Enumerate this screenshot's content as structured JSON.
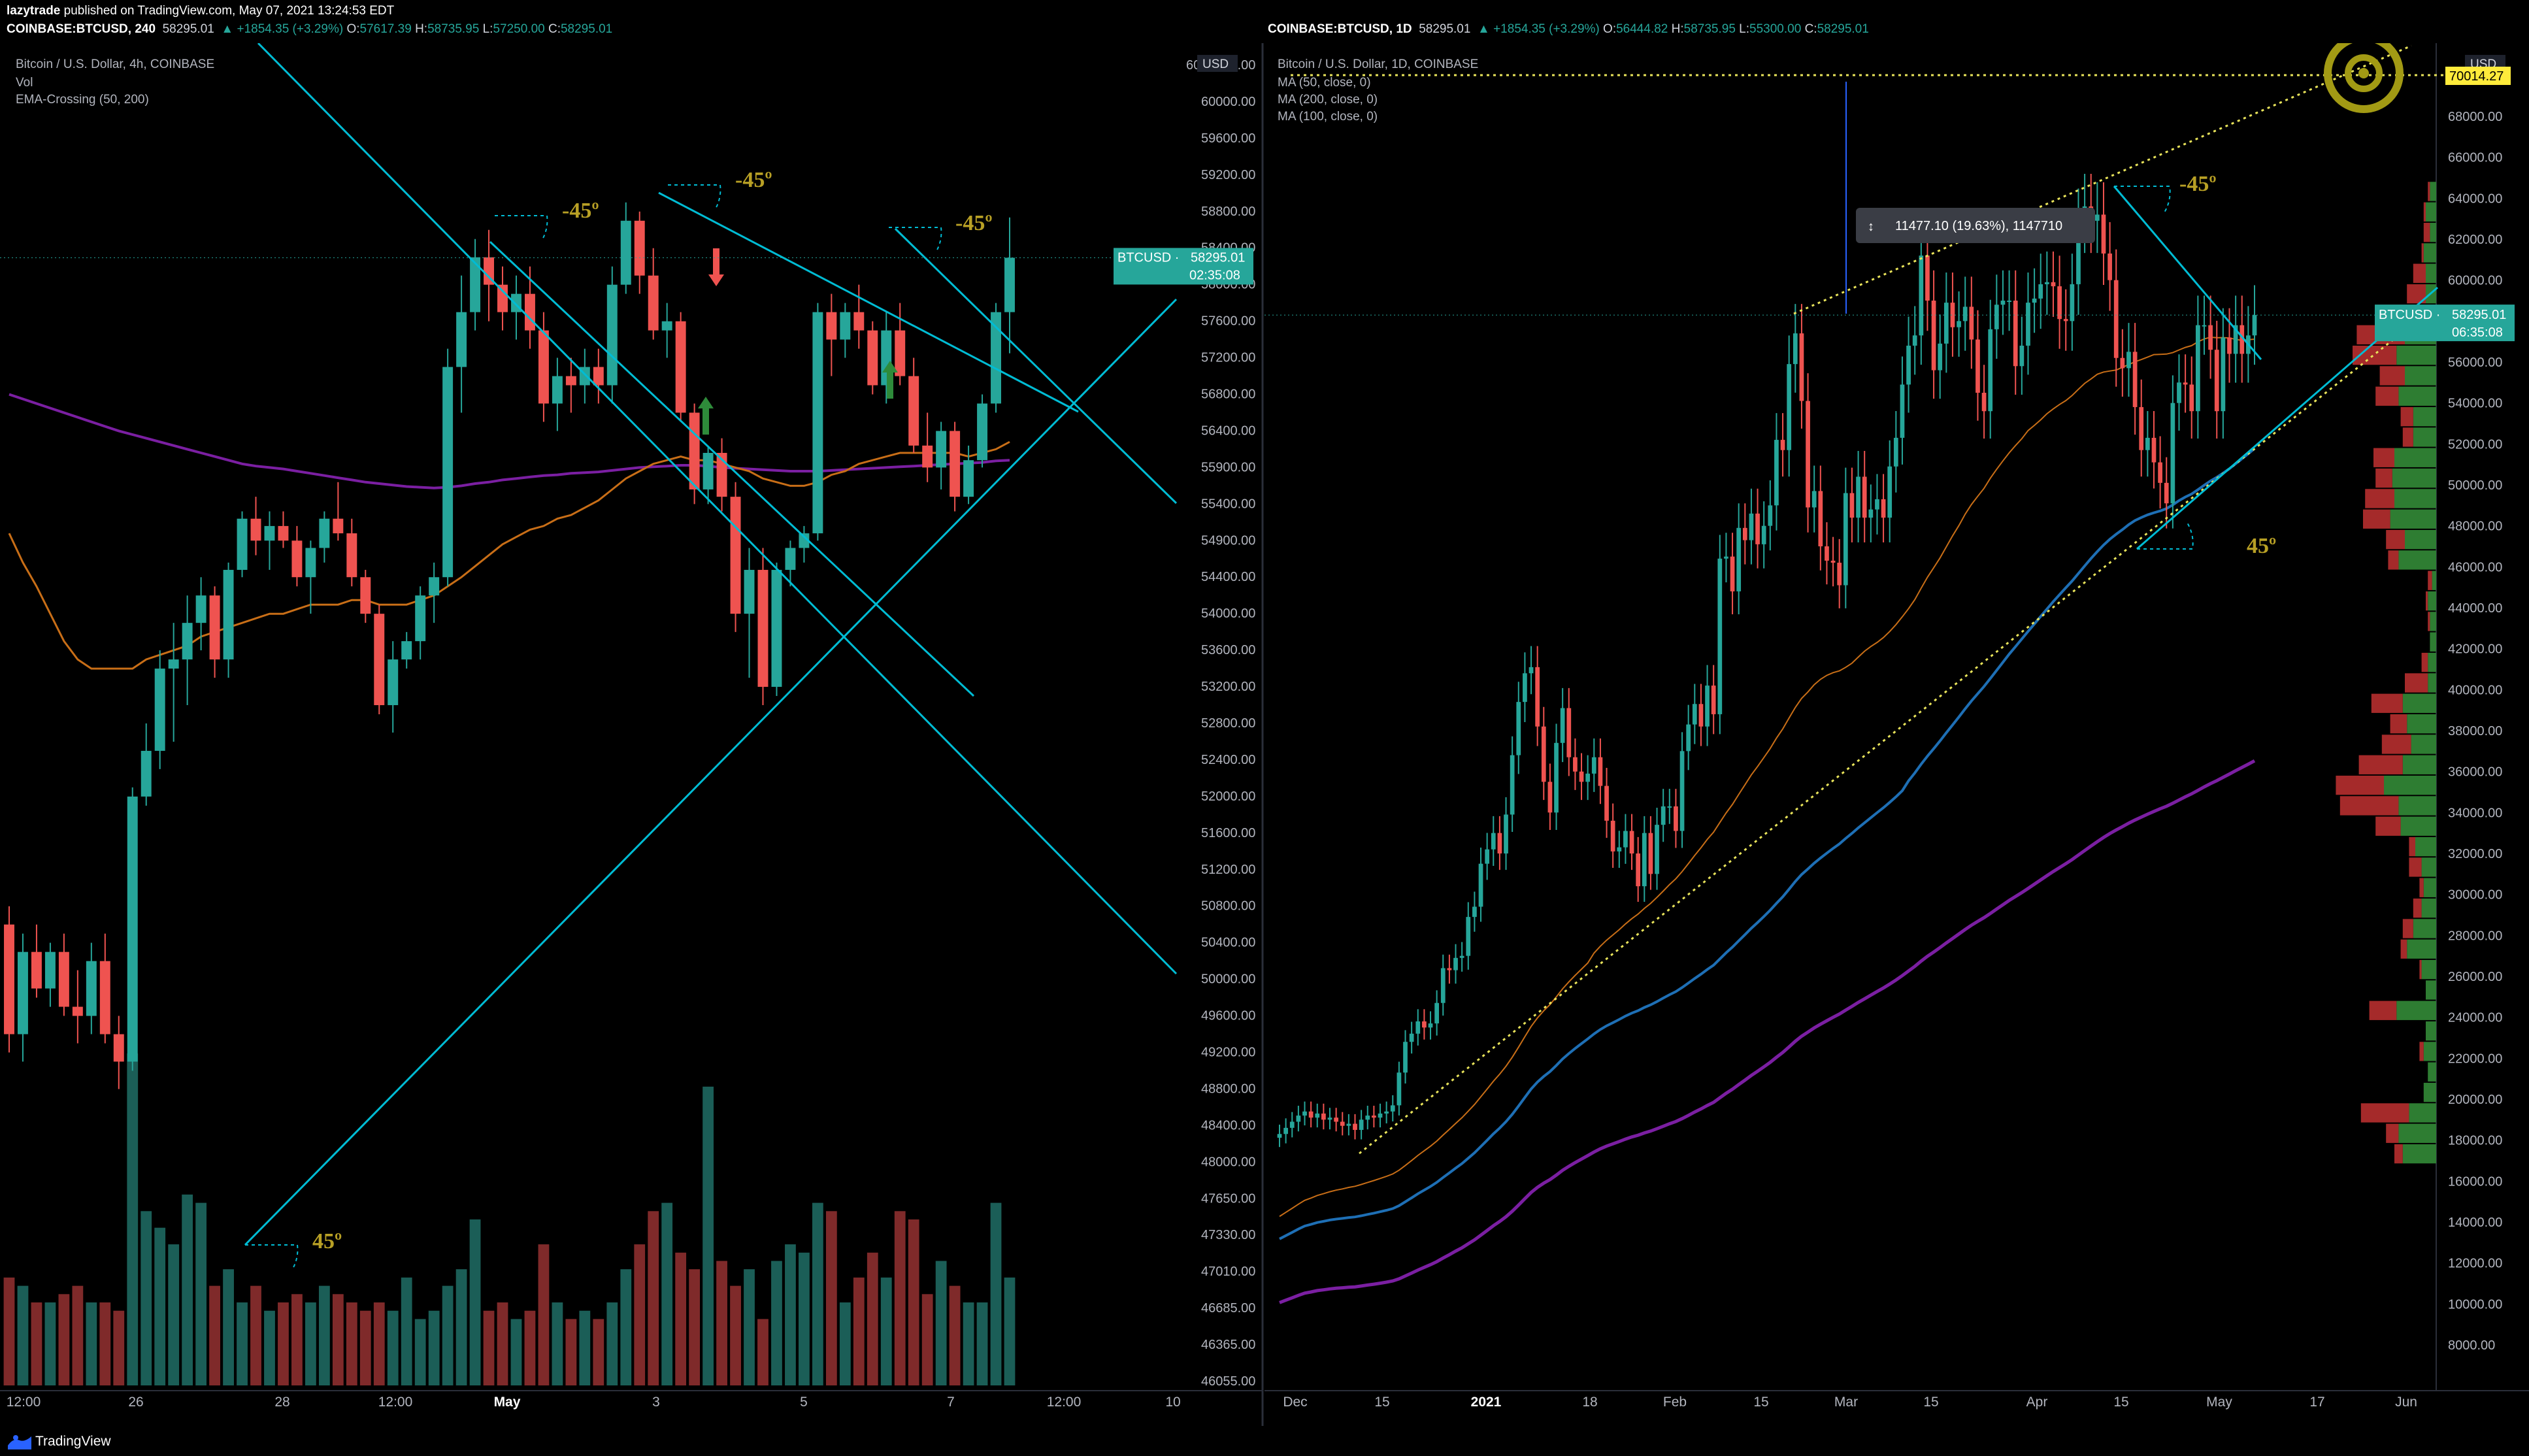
{
  "header": {
    "publisher": "lazytrade",
    "published_text": "published on TradingView.com, May 07, 2021 13:24:53 EDT",
    "left_symbol": "COINBASE:BTCUSD, 240",
    "left_stats": [
      "58295.01",
      "▲ +1854.35 (+3.29%)",
      "O:",
      "57617.39",
      "H:",
      "58735.95",
      "L:",
      "57250.00",
      "C:",
      "58295.01"
    ],
    "right_symbol": "COINBASE:BTCUSD, 1D",
    "right_stats": [
      "58295.01",
      "▲ +1854.35 (+3.29%)",
      "O:",
      "56444.82",
      "H:",
      "58735.95",
      "L:",
      "55300.00",
      "C:",
      "58295.01"
    ]
  },
  "footer": {
    "brand": "TradingView",
    "logo_icon": "tradingview-logo-icon"
  },
  "colors": {
    "up": "#26a69a",
    "down": "#ef5350",
    "vol_up": "#1b5e57",
    "vol_down": "#7f2a2a",
    "cyan": "#00bcd4",
    "gold": "#b8a025",
    "purple": "#7b1fa2",
    "orange": "#c86e17",
    "blue": "#1e6fb5",
    "price_tag": "#26a69a",
    "yellow_tag": "#ffeb3b"
  },
  "chart_data": [
    {
      "type": "candlestick",
      "title": "Bitcoin / U.S. Dollar, 4h, COINBASE",
      "indicators": [
        "Vol",
        "EMA-Crossing (50, 200)"
      ],
      "currency": "USD",
      "y_ticks": [
        46055,
        46365,
        46685,
        47010,
        47330,
        47650,
        48000,
        48400,
        48800,
        49200,
        49600,
        50000,
        50400,
        50800,
        51200,
        51600,
        52000,
        52400,
        52800,
        53200,
        53600,
        54000,
        54400,
        54900,
        55400,
        55900,
        56400,
        56800,
        57200,
        57600,
        58000,
        58400,
        58800,
        59200,
        59600,
        60000,
        60400
      ],
      "y_top_label": "60",
      "x_labels": [
        "12:00",
        "26",
        "28",
        "12:00",
        "May",
        "3",
        "5",
        "7",
        "12:00",
        "10"
      ],
      "last_price_label": "BTCUSD",
      "last_price": "58295.01",
      "countdown": "02:35:08",
      "ohlc": [
        [
          50600,
          50800,
          49200,
          49400
        ],
        [
          49400,
          50500,
          49100,
          50300
        ],
        [
          50300,
          50600,
          49800,
          49900
        ],
        [
          49900,
          50400,
          49700,
          50300
        ],
        [
          50300,
          50500,
          49600,
          49700
        ],
        [
          49700,
          50100,
          49300,
          49600
        ],
        [
          49600,
          50400,
          49400,
          50200
        ],
        [
          50200,
          50500,
          49300,
          49400
        ],
        [
          49400,
          49600,
          48800,
          49100
        ],
        [
          49100,
          52100,
          49000,
          52000
        ],
        [
          52000,
          52800,
          51900,
          52500
        ],
        [
          52500,
          53600,
          52300,
          53400
        ],
        [
          53400,
          53900,
          52600,
          53500
        ],
        [
          53500,
          54200,
          53000,
          53900
        ],
        [
          53900,
          54400,
          53600,
          54200
        ],
        [
          54200,
          54300,
          53300,
          53500
        ],
        [
          53500,
          54600,
          53300,
          54500
        ],
        [
          54500,
          55300,
          54400,
          55200
        ],
        [
          55200,
          55500,
          54700,
          54900
        ],
        [
          54900,
          55300,
          54500,
          55100
        ],
        [
          55100,
          55300,
          54800,
          54900
        ],
        [
          54900,
          55100,
          54300,
          54400
        ],
        [
          54400,
          54900,
          54000,
          54800
        ],
        [
          54800,
          55300,
          54600,
          55200
        ],
        [
          55200,
          55700,
          54900,
          55000
        ],
        [
          55000,
          55200,
          54300,
          54400
        ],
        [
          54400,
          54500,
          53900,
          54000
        ],
        [
          54000,
          54100,
          52900,
          53000
        ],
        [
          53000,
          53700,
          52700,
          53500
        ],
        [
          53500,
          53800,
          53400,
          53700
        ],
        [
          53700,
          54300,
          53500,
          54200
        ],
        [
          54200,
          54600,
          53900,
          54400
        ],
        [
          54400,
          57300,
          54300,
          57100
        ],
        [
          57100,
          58100,
          56600,
          57700
        ],
        [
          57700,
          58500,
          57500,
          58300
        ],
        [
          58300,
          58600,
          57600,
          58000
        ],
        [
          58000,
          58200,
          57500,
          57700
        ],
        [
          57700,
          58100,
          57400,
          57900
        ],
        [
          57900,
          58200,
          57300,
          57500
        ],
        [
          57500,
          57700,
          56500,
          56700
        ],
        [
          56700,
          57200,
          56400,
          57000
        ],
        [
          57000,
          57200,
          56600,
          56900
        ],
        [
          56900,
          57300,
          56700,
          57100
        ],
        [
          57100,
          57300,
          56700,
          56900
        ],
        [
          56900,
          58200,
          56700,
          58000
        ],
        [
          58000,
          58900,
          57900,
          58700
        ],
        [
          58700,
          58800,
          57900,
          58100
        ],
        [
          58100,
          58400,
          57400,
          57500
        ],
        [
          57500,
          57800,
          57200,
          57600
        ],
        [
          57600,
          57700,
          56500,
          56600
        ],
        [
          56600,
          56700,
          55400,
          55600
        ],
        [
          55600,
          56200,
          55400,
          56100
        ],
        [
          56100,
          56300,
          55300,
          55500
        ],
        [
          55500,
          55700,
          53800,
          54000
        ],
        [
          54000,
          54800,
          53300,
          54500
        ],
        [
          54500,
          54800,
          53000,
          53200
        ],
        [
          53200,
          54600,
          53100,
          54500
        ],
        [
          54500,
          54900,
          54300,
          54800
        ],
        [
          54800,
          55100,
          54600,
          55000
        ],
        [
          55000,
          57800,
          54900,
          57700
        ],
        [
          57700,
          57900,
          57000,
          57400
        ],
        [
          57400,
          57800,
          57200,
          57700
        ],
        [
          57700,
          58000,
          57300,
          57500
        ],
        [
          57500,
          57600,
          56800,
          56900
        ],
        [
          56900,
          57700,
          56700,
          57500
        ],
        [
          57500,
          57800,
          56900,
          57000
        ],
        [
          57000,
          57200,
          56100,
          56200
        ],
        [
          56200,
          56600,
          55700,
          55900
        ],
        [
          55900,
          56500,
          55600,
          56400
        ],
        [
          56400,
          56500,
          55300,
          55500
        ],
        [
          55500,
          56200,
          55400,
          56000
        ],
        [
          56000,
          56800,
          55900,
          56700
        ],
        [
          56700,
          57800,
          56600,
          57700
        ],
        [
          57700,
          58736,
          57250,
          58295
        ]
      ],
      "volume": [
        13,
        12,
        10,
        10,
        11,
        12,
        10,
        10,
        9,
        40,
        21,
        19,
        17,
        23,
        22,
        12,
        14,
        10,
        12,
        9,
        10,
        11,
        10,
        12,
        11,
        10,
        9,
        10,
        9,
        13,
        8,
        9,
        12,
        14,
        20,
        9,
        10,
        8,
        9,
        17,
        10,
        8,
        9,
        8,
        10,
        14,
        17,
        21,
        22,
        16,
        14,
        36,
        15,
        12,
        14,
        8,
        15,
        17,
        16,
        22,
        21,
        10,
        13,
        16,
        13,
        21,
        20,
        11,
        15,
        12,
        10,
        10,
        22,
        13
      ],
      "ema50": [
        55000,
        54600,
        54300,
        54000,
        53700,
        53500,
        53400,
        53400,
        53400,
        53400,
        53500,
        53550,
        53600,
        53650,
        53750,
        53800,
        53850,
        53900,
        53950,
        54000,
        54000,
        54050,
        54100,
        54100,
        54100,
        54150,
        54150,
        54100,
        54100,
        54100,
        54150,
        54200,
        54300,
        54400,
        54550,
        54700,
        54850,
        54950,
        55050,
        55100,
        55200,
        55250,
        55350,
        55450,
        55600,
        55750,
        55850,
        55950,
        56000,
        56050,
        56000,
        56000,
        55950,
        55900,
        55850,
        55750,
        55700,
        55650,
        55650,
        55700,
        55800,
        55850,
        55950,
        56000,
        56050,
        56100,
        56100,
        56100,
        56100,
        56100,
        56050,
        56100,
        56150,
        56250
      ],
      "ema200": [
        56800,
        56750,
        56700,
        56650,
        56600,
        56550,
        56500,
        56450,
        56400,
        56350,
        56300,
        56250,
        56200,
        56150,
        56100,
        56050,
        56000,
        55950,
        55920,
        55900,
        55880,
        55850,
        55820,
        55790,
        55760,
        55730,
        55700,
        55680,
        55660,
        55640,
        55630,
        55620,
        55630,
        55650,
        55680,
        55700,
        55730,
        55750,
        55770,
        55790,
        55800,
        55820,
        55830,
        55840,
        55860,
        55880,
        55900,
        55910,
        55920,
        55930,
        55930,
        55920,
        55900,
        55890,
        55880,
        55870,
        55860,
        55850,
        55850,
        55850,
        55860,
        55870,
        55880,
        55890,
        55900,
        55910,
        55920,
        55930,
        55940,
        55950,
        55960,
        55970,
        55990,
        56000
      ],
      "annotations": [
        "-45º",
        "-45º",
        "-45º",
        "45º"
      ]
    },
    {
      "type": "candlestick",
      "title": "Bitcoin / U.S. Dollar, 1D, COINBASE",
      "indicators": [
        "MA (50, close, 0)",
        "MA (200, close, 0)",
        "MA (100, close, 0)"
      ],
      "currency": "USD",
      "y_ticks": [
        8000,
        10000,
        12000,
        14000,
        16000,
        18000,
        20000,
        22000,
        24000,
        26000,
        28000,
        30000,
        32000,
        34000,
        36000,
        38000,
        40000,
        42000,
        44000,
        46000,
        48000,
        50000,
        52000,
        54000,
        56000,
        58000,
        60000,
        62000,
        64000,
        66000,
        68000
      ],
      "x_labels": [
        "Dec",
        "15",
        "2021",
        "18",
        "Feb",
        "15",
        "Mar",
        "15",
        "Apr",
        "15",
        "May",
        "17",
        "Jun"
      ],
      "last_price_label": "BTCUSD",
      "last_price": "58295.01",
      "countdown": "06:35:08",
      "target_price": "70014.27",
      "measure_label": "11477.10 (19.63%), 1147710",
      "annotations": [
        "-45º",
        "45º"
      ],
      "close": [
        18300,
        18600,
        18900,
        19200,
        19400,
        19100,
        19300,
        19000,
        19100,
        18900,
        18700,
        18800,
        18500,
        19000,
        19200,
        19100,
        19300,
        19400,
        19700,
        21300,
        22800,
        23200,
        23800,
        23500,
        23700,
        24700,
        26400,
        26300,
        26900,
        27000,
        28900,
        29400,
        31500,
        32200,
        33000,
        32000,
        33900,
        36800,
        39400,
        40800,
        41100,
        38200,
        35500,
        34000,
        37400,
        39100,
        36700,
        36000,
        35500,
        35900,
        36700,
        35300,
        33600,
        32100,
        32300,
        33100,
        32000,
        30400,
        33000,
        31000,
        33400,
        34300,
        34300,
        33100,
        37000,
        38300,
        39300,
        38200,
        40200,
        38800,
        46400,
        46500,
        44800,
        47900,
        47300,
        48600,
        47100,
        48000,
        49000,
        52200,
        51700,
        55900,
        57400,
        54100,
        48900,
        49700,
        47000,
        46300,
        46200,
        45100,
        49600,
        48400,
        50400,
        48400,
        48800,
        49300,
        48400,
        50900,
        52300,
        54900,
        56800,
        57300,
        61200,
        59000,
        55600,
        56900,
        58900,
        57700,
        58000,
        58700,
        57100,
        54500,
        53600,
        57600,
        58800,
        59000,
        59000,
        55800,
        56800,
        58900,
        59100,
        59800,
        59900,
        59700,
        58100,
        58000,
        59800,
        62900,
        63600,
        62900,
        63200,
        61300,
        60000,
        56200,
        55700,
        56500,
        53800,
        51700,
        52300,
        51100,
        50100,
        49100,
        54000,
        55000,
        54900,
        53600,
        57800,
        57800,
        56600,
        53600,
        57200,
        56400,
        57800,
        56400,
        57300,
        58295
      ],
      "volume_profile": [
        [
          16800,
          4,
          16
        ],
        [
          17800,
          6,
          18
        ],
        [
          18800,
          23,
          13
        ],
        [
          19800,
          0,
          6
        ],
        [
          20800,
          0,
          4
        ],
        [
          21800,
          2,
          6
        ],
        [
          22800,
          0,
          5
        ],
        [
          23800,
          13,
          19
        ],
        [
          24800,
          0,
          5
        ],
        [
          25800,
          1,
          7
        ],
        [
          26800,
          3,
          14
        ],
        [
          27800,
          5,
          11
        ],
        [
          28800,
          4,
          7
        ],
        [
          29800,
          2,
          6
        ],
        [
          30800,
          6,
          7
        ],
        [
          31800,
          3,
          10
        ],
        [
          32800,
          12,
          17
        ],
        [
          33800,
          28,
          18
        ],
        [
          34800,
          23,
          25
        ],
        [
          35800,
          21,
          16
        ],
        [
          36800,
          14,
          12
        ],
        [
          37800,
          8,
          14
        ],
        [
          38800,
          15,
          16
        ],
        [
          39800,
          11,
          4
        ],
        [
          40800,
          3,
          4
        ],
        [
          41800,
          0,
          3
        ],
        [
          42800,
          1,
          3
        ],
        [
          43800,
          1,
          4
        ],
        [
          44800,
          2,
          2
        ],
        [
          45800,
          5,
          18
        ],
        [
          46800,
          9,
          15
        ],
        [
          47800,
          13,
          22
        ],
        [
          48800,
          14,
          20
        ],
        [
          49800,
          8,
          21
        ],
        [
          50800,
          10,
          20
        ],
        [
          51800,
          5,
          11
        ],
        [
          52800,
          6,
          11
        ],
        [
          53800,
          11,
          18
        ],
        [
          54800,
          12,
          15
        ],
        [
          55800,
          21,
          19
        ],
        [
          56800,
          23,
          15
        ],
        [
          57800,
          16,
          12
        ],
        [
          58800,
          9,
          5
        ],
        [
          59800,
          6,
          5
        ],
        [
          60800,
          1,
          6
        ],
        [
          61800,
          3,
          3
        ],
        [
          62800,
          1,
          5
        ],
        [
          63800,
          1,
          3
        ]
      ]
    }
  ]
}
